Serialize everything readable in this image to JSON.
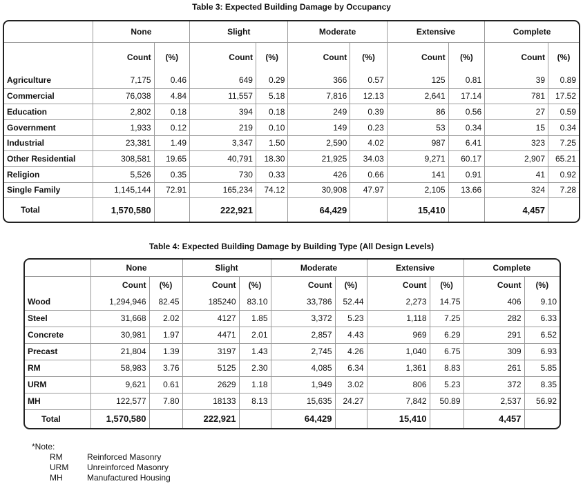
{
  "table3": {
    "caption": "Table 3: Expected Building Damage by Occupancy",
    "groups": [
      "None",
      "Slight",
      "Moderate",
      "Extensive",
      "Complete"
    ],
    "count_label": "Count",
    "pct_label": "(%)",
    "rows": [
      {
        "label": "Agriculture",
        "cells": [
          "7,175",
          "0.46",
          "649",
          "0.29",
          "366",
          "0.57",
          "125",
          "0.81",
          "39",
          "0.89"
        ]
      },
      {
        "label": "Commercial",
        "cells": [
          "76,038",
          "4.84",
          "11,557",
          "5.18",
          "7,816",
          "12.13",
          "2,641",
          "17.14",
          "781",
          "17.52"
        ]
      },
      {
        "label": "Education",
        "cells": [
          "2,802",
          "0.18",
          "394",
          "0.18",
          "249",
          "0.39",
          "86",
          "0.56",
          "27",
          "0.59"
        ]
      },
      {
        "label": "Government",
        "cells": [
          "1,933",
          "0.12",
          "219",
          "0.10",
          "149",
          "0.23",
          "53",
          "0.34",
          "15",
          "0.34"
        ]
      },
      {
        "label": "Industrial",
        "cells": [
          "23,381",
          "1.49",
          "3,347",
          "1.50",
          "2,590",
          "4.02",
          "987",
          "6.41",
          "323",
          "7.25"
        ]
      },
      {
        "label": "Other Residential",
        "cells": [
          "308,581",
          "19.65",
          "40,791",
          "18.30",
          "21,925",
          "34.03",
          "9,271",
          "60.17",
          "2,907",
          "65.21"
        ]
      },
      {
        "label": "Religion",
        "cells": [
          "5,526",
          "0.35",
          "730",
          "0.33",
          "426",
          "0.66",
          "141",
          "0.91",
          "41",
          "0.92"
        ]
      },
      {
        "label": "Single Family",
        "cells": [
          "1,145,144",
          "72.91",
          "165,234",
          "74.12",
          "30,908",
          "47.97",
          "2,105",
          "13.66",
          "324",
          "7.28"
        ]
      }
    ],
    "total": {
      "label": "Total",
      "cells": [
        "1,570,580",
        "",
        "222,921",
        "",
        "64,429",
        "",
        "15,410",
        "",
        "4,457",
        ""
      ]
    }
  },
  "table4": {
    "caption": "Table 4: Expected Building Damage by Building Type (All Design Levels)",
    "groups": [
      "None",
      "Slight",
      "Moderate",
      "Extensive",
      "Complete"
    ],
    "count_label": "Count",
    "pct_label": "(%)",
    "rows": [
      {
        "label": "Wood",
        "cells": [
          "1,294,946",
          "82.45",
          "185240",
          "83.10",
          "33,786",
          "52.44",
          "2,273",
          "14.75",
          "406",
          "9.10"
        ]
      },
      {
        "label": "Steel",
        "cells": [
          "31,668",
          "2.02",
          "4127",
          "1.85",
          "3,372",
          "5.23",
          "1,118",
          "7.25",
          "282",
          "6.33"
        ]
      },
      {
        "label": "Concrete",
        "cells": [
          "30,981",
          "1.97",
          "4471",
          "2.01",
          "2,857",
          "4.43",
          "969",
          "6.29",
          "291",
          "6.52"
        ]
      },
      {
        "label": "Precast",
        "cells": [
          "21,804",
          "1.39",
          "3197",
          "1.43",
          "2,745",
          "4.26",
          "1,040",
          "6.75",
          "309",
          "6.93"
        ]
      },
      {
        "label": "RM",
        "cells": [
          "58,983",
          "3.76",
          "5125",
          "2.30",
          "4,085",
          "6.34",
          "1,361",
          "8.83",
          "261",
          "5.85"
        ]
      },
      {
        "label": "URM",
        "cells": [
          "9,621",
          "0.61",
          "2629",
          "1.18",
          "1,949",
          "3.02",
          "806",
          "5.23",
          "372",
          "8.35"
        ]
      },
      {
        "label": "MH",
        "cells": [
          "122,577",
          "7.80",
          "18133",
          "8.13",
          "15,635",
          "24.27",
          "7,842",
          "50.89",
          "2,537",
          "56.92"
        ]
      }
    ],
    "total": {
      "label": "Total",
      "cells": [
        "1,570,580",
        "",
        "222,921",
        "",
        "64,429",
        "",
        "15,410",
        "",
        "4,457",
        ""
      ]
    }
  },
  "note": {
    "title": "*Note:",
    "items": [
      {
        "abbr": "RM",
        "text": "Reinforced Masonry"
      },
      {
        "abbr": "URM",
        "text": "Unreinforced Masonry"
      },
      {
        "abbr": "MH",
        "text": "Manufactured Housing"
      }
    ]
  }
}
